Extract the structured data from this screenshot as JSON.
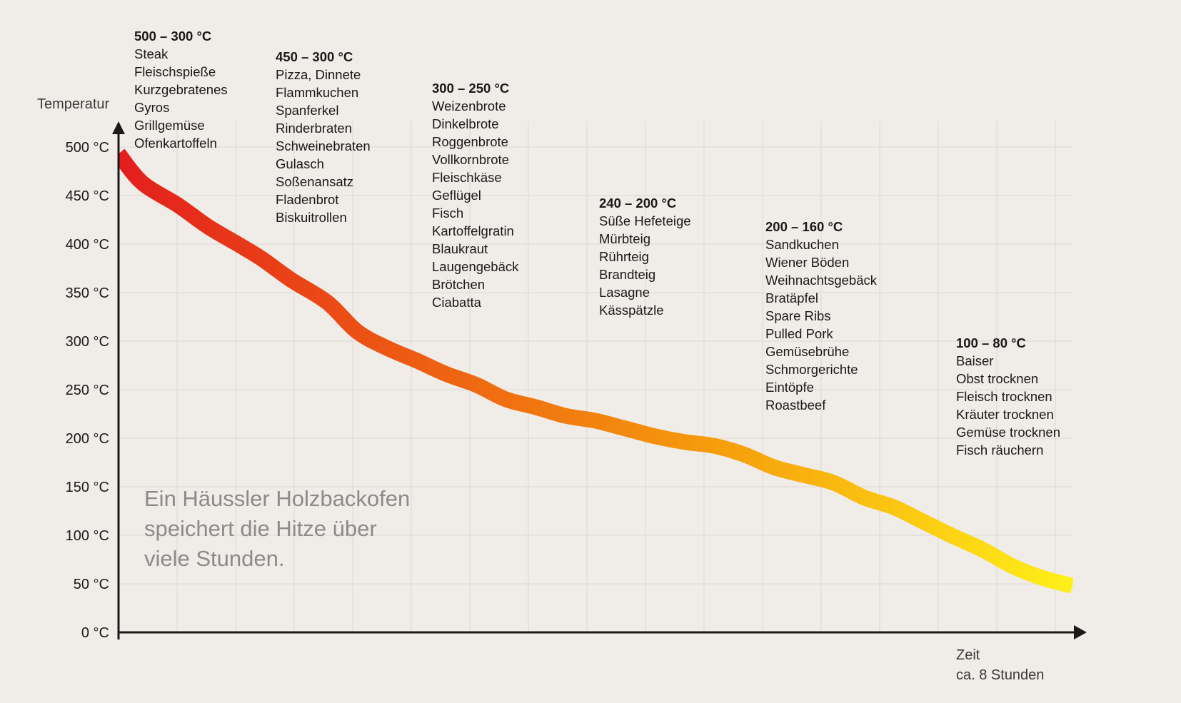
{
  "chart_data": {
    "type": "line",
    "ylabel": "Temperatur",
    "xlabel_line1": "Zeit",
    "xlabel_line2": "ca. 8 Stunden",
    "xlim": [
      0,
      8
    ],
    "ylim": [
      0,
      500
    ],
    "y_ticks": [
      {
        "value": 0,
        "label": "0 °C"
      },
      {
        "value": 50,
        "label": "50 °C"
      },
      {
        "value": 100,
        "label": "100 °C"
      },
      {
        "value": 150,
        "label": "150 °C"
      },
      {
        "value": 200,
        "label": "200 °C"
      },
      {
        "value": 250,
        "label": "250 °C"
      },
      {
        "value": 300,
        "label": "300 °C"
      },
      {
        "value": 350,
        "label": "350 °C"
      },
      {
        "value": 400,
        "label": "400 °C"
      },
      {
        "value": 450,
        "label": "450 °C"
      },
      {
        "value": 500,
        "label": "500 °C"
      }
    ],
    "grid": true,
    "series": [
      {
        "x": [
          0,
          0.2,
          0.5,
          0.75,
          1.0,
          1.2,
          1.45,
          1.75,
          2.0,
          2.25,
          2.5,
          2.75,
          3.0,
          3.25,
          3.5,
          3.75,
          4.0,
          4.25,
          4.5,
          4.75,
          5.0,
          5.25,
          5.5,
          5.75,
          6.0,
          6.25,
          6.5,
          6.75,
          7.0,
          7.25,
          7.5,
          7.75,
          8.0
        ],
        "y": [
          493,
          463,
          440,
          418,
          400,
          385,
          363,
          340,
          310,
          293,
          280,
          266,
          255,
          240,
          232,
          223,
          218,
          210,
          202,
          196,
          192,
          183,
          170,
          162,
          154,
          139,
          129,
          114,
          99,
          85,
          68,
          56,
          48
        ]
      }
    ],
    "color_gradient": [
      "#e31e1e",
      "#ed5a12",
      "#f6a20c",
      "#fff018"
    ],
    "annotation_groups": [
      {
        "heading": "500 – 300 °C",
        "items": [
          "Steak",
          "Fleischspieße",
          "Kurzgebratenes",
          "Gyros",
          "Grillgemüse",
          "Ofenkartoffeln"
        ]
      },
      {
        "heading": "450 – 300 °C",
        "items": [
          "Pizza, Dinnete",
          "Flammkuchen",
          "Spanferkel",
          "Rinderbraten",
          "Schweinebraten",
          "Gulasch",
          "Soßenansatz",
          "Fladenbrot",
          "Biskuitrollen"
        ]
      },
      {
        "heading": "300 – 250 °C",
        "items": [
          "Weizenbrote",
          "Dinkelbrote",
          "Roggenbrote",
          "Vollkornbrote",
          "Fleischkäse",
          "Geflügel",
          "Fisch",
          "Kartoffelgratin",
          "Blaukraut",
          "Laugengebäck",
          "Brötchen",
          "Ciabatta"
        ]
      },
      {
        "heading": "240 – 200 °C",
        "items": [
          "Süße Hefeteige",
          "Mürbteig",
          "Rührteig",
          "Brandteig",
          "Lasagne",
          "Kässpätzle"
        ]
      },
      {
        "heading": "200 – 160 °C",
        "items": [
          "Sandkuchen",
          "Wiener Böden",
          "Weihnachtsgebäck",
          "Bratäpfel",
          "Spare Ribs",
          "Pulled Pork",
          "Gemüsebrühe",
          "Schmorgerichte",
          "Eintöpfe",
          "Roastbeef"
        ]
      },
      {
        "heading": "100 – 80 °C",
        "items": [
          "Baiser",
          "Obst trocknen",
          "Fleisch trocknen",
          "Kräuter trocknen",
          "Gemüse trocknen",
          "Fisch räuchern"
        ]
      }
    ],
    "tagline": [
      "Ein Häussler Holzbackofen",
      "speichert die Hitze über",
      "viele Stunden."
    ]
  }
}
